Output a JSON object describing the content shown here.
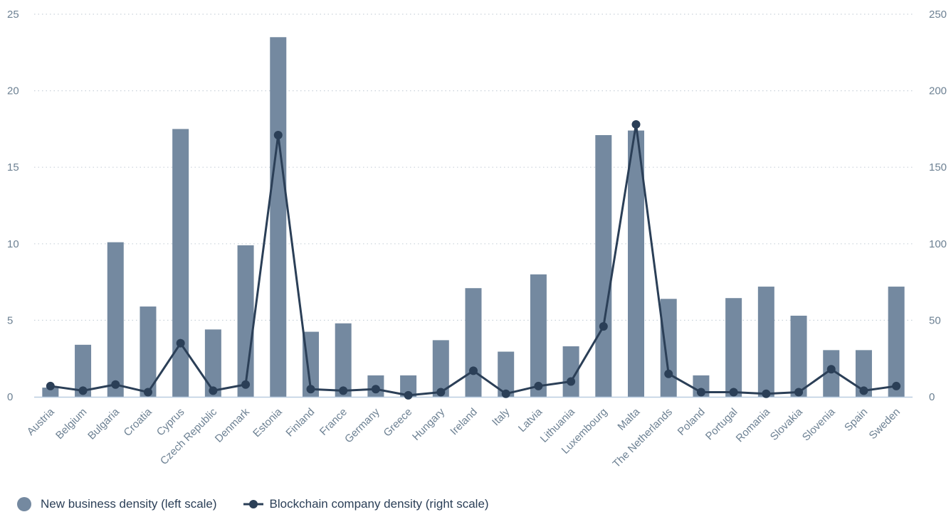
{
  "chart_data": {
    "type": "bar",
    "categories": [
      "Austria",
      "Belgium",
      "Bulgaria",
      "Croatia",
      "Cyprus",
      "Czech Republic",
      "Denmark",
      "Estonia",
      "Finland",
      "France",
      "Germany",
      "Greece",
      "Hungary",
      "Ireland",
      "Italy",
      "Latvia",
      "Lithuania",
      "Luxembourg",
      "Malta",
      "The Netherlands",
      "Poland",
      "Portugal",
      "Romania",
      "Slovakia",
      "Slovenia",
      "Spain",
      "Sweden"
    ],
    "series": [
      {
        "name": "New business density (left scale)",
        "type": "bar",
        "axis": "left",
        "color": "#7489a0",
        "values": [
          0.6,
          3.4,
          10.1,
          5.9,
          17.5,
          4.4,
          9.9,
          23.5,
          4.25,
          4.8,
          1.4,
          1.4,
          3.7,
          7.1,
          2.95,
          8.0,
          3.3,
          17.1,
          17.4,
          6.4,
          1.4,
          6.45,
          7.2,
          5.3,
          3.05,
          3.05,
          7.2
        ]
      },
      {
        "name": "Blockchain company density (right scale)",
        "type": "line",
        "axis": "right",
        "color": "#2b3f57",
        "values": [
          7,
          4,
          8,
          3,
          35,
          4,
          8,
          171,
          5,
          4,
          5,
          1,
          3,
          17,
          2,
          7,
          10,
          46,
          178,
          15,
          3,
          3,
          2,
          3,
          18,
          4,
          7
        ]
      }
    ],
    "y_left": {
      "ticks": [
        "0",
        "5",
        "10",
        "15",
        "20",
        "25"
      ],
      "range": [
        0,
        25
      ]
    },
    "y_right": {
      "ticks": [
        "0",
        "50",
        "100",
        "150",
        "200",
        "250"
      ],
      "range": [
        0,
        250
      ]
    },
    "grid": true,
    "legend_position": "bottom-left"
  },
  "legend": {
    "bar_label": "New business density (left scale)",
    "line_label": "Blockchain company density (right scale)"
  }
}
